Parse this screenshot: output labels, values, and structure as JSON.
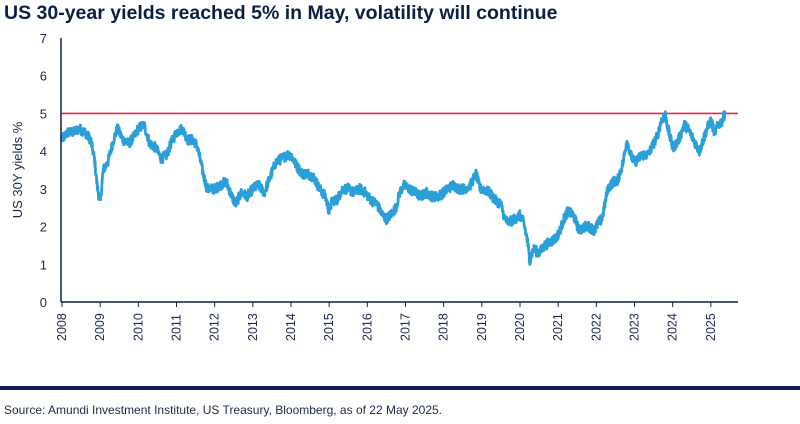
{
  "chart_data": {
    "type": "line",
    "title": "US 30-year yields reached 5% in May, volatility will continue",
    "ylabel": "US 30Y yields %",
    "xlabel": "",
    "ylim": [
      0,
      7
    ],
    "yticks": [
      "0",
      "1",
      "2",
      "3",
      "4",
      "5",
      "6",
      "7"
    ],
    "xlim": [
      2008.0,
      2025.45
    ],
    "xticks": [
      "2008",
      "2009",
      "2010",
      "2011",
      "2012",
      "2013",
      "2014",
      "2015",
      "2016",
      "2017",
      "2018",
      "2019",
      "2020",
      "2021",
      "2022",
      "2023",
      "2024",
      "2025"
    ],
    "reference_line": {
      "y": 5,
      "color": "#e0284b"
    },
    "series": [
      {
        "name": "US 30Y yield",
        "color": "#2a9fd8",
        "x": [
          2008.0,
          2008.15,
          2008.3,
          2008.45,
          2008.6,
          2008.75,
          2008.85,
          2008.92,
          2009.0,
          2009.08,
          2009.2,
          2009.35,
          2009.45,
          2009.6,
          2009.75,
          2009.9,
          2010.0,
          2010.15,
          2010.3,
          2010.45,
          2010.6,
          2010.75,
          2010.85,
          2011.0,
          2011.15,
          2011.3,
          2011.45,
          2011.55,
          2011.7,
          2011.8,
          2011.9,
          2012.0,
          2012.15,
          2012.3,
          2012.45,
          2012.55,
          2012.7,
          2012.85,
          2013.0,
          2013.15,
          2013.3,
          2013.45,
          2013.6,
          2013.75,
          2013.9,
          2014.0,
          2014.15,
          2014.3,
          2014.45,
          2014.6,
          2014.75,
          2014.9,
          2015.0,
          2015.08,
          2015.2,
          2015.35,
          2015.5,
          2015.65,
          2015.8,
          2015.95,
          2016.1,
          2016.25,
          2016.4,
          2016.5,
          2016.6,
          2016.75,
          2016.85,
          2016.95,
          2017.1,
          2017.25,
          2017.4,
          2017.55,
          2017.7,
          2017.85,
          2018.0,
          2018.1,
          2018.25,
          2018.4,
          2018.55,
          2018.7,
          2018.85,
          2018.95,
          2019.05,
          2019.2,
          2019.35,
          2019.5,
          2019.6,
          2019.7,
          2019.85,
          2020.0,
          2020.1,
          2020.2,
          2020.25,
          2020.35,
          2020.5,
          2020.65,
          2020.8,
          2020.95,
          2021.05,
          2021.15,
          2021.25,
          2021.4,
          2021.55,
          2021.7,
          2021.8,
          2021.95,
          2022.05,
          2022.15,
          2022.3,
          2022.45,
          2022.55,
          2022.7,
          2022.8,
          2022.9,
          2023.0,
          2023.1,
          2023.2,
          2023.35,
          2023.5,
          2023.6,
          2023.7,
          2023.8,
          2023.9,
          2024.0,
          2024.1,
          2024.2,
          2024.3,
          2024.4,
          2024.5,
          2024.6,
          2024.7,
          2024.8,
          2024.9,
          2025.0,
          2025.1,
          2025.2,
          2025.3,
          2025.38
        ],
        "values": [
          4.3,
          4.5,
          4.5,
          4.6,
          4.5,
          4.3,
          3.8,
          3.1,
          2.6,
          3.5,
          3.7,
          4.3,
          4.6,
          4.3,
          4.2,
          4.4,
          4.6,
          4.7,
          4.2,
          4.1,
          3.8,
          3.9,
          4.2,
          4.5,
          4.6,
          4.3,
          4.3,
          4.1,
          3.4,
          3.0,
          3.0,
          3.0,
          3.1,
          3.2,
          2.8,
          2.6,
          2.9,
          2.8,
          3.0,
          3.1,
          2.9,
          3.3,
          3.7,
          3.8,
          3.9,
          3.9,
          3.6,
          3.4,
          3.4,
          3.3,
          3.0,
          2.8,
          2.4,
          2.7,
          2.7,
          3.0,
          3.0,
          2.9,
          3.0,
          2.9,
          2.7,
          2.6,
          2.3,
          2.2,
          2.3,
          2.5,
          2.9,
          3.1,
          3.0,
          2.9,
          2.8,
          2.9,
          2.8,
          2.8,
          2.9,
          3.0,
          3.1,
          3.0,
          3.0,
          3.1,
          3.4,
          3.0,
          3.0,
          2.9,
          2.7,
          2.6,
          2.2,
          2.1,
          2.2,
          2.3,
          2.1,
          1.6,
          1.1,
          1.4,
          1.3,
          1.5,
          1.6,
          1.7,
          1.9,
          2.2,
          2.4,
          2.3,
          1.9,
          2.0,
          2.0,
          1.9,
          2.1,
          2.2,
          3.0,
          3.2,
          3.2,
          3.7,
          4.3,
          3.9,
          3.7,
          3.8,
          3.9,
          3.9,
          4.2,
          4.4,
          4.8,
          5.0,
          4.5,
          4.1,
          4.2,
          4.4,
          4.7,
          4.6,
          4.4,
          4.2,
          4.0,
          4.3,
          4.6,
          4.8,
          4.5,
          4.7,
          4.8,
          5.05
        ]
      }
    ]
  },
  "footer": {
    "source": "Source: Amundi Investment Institute, US Treasury, Bloomberg, as of 22 May 2025."
  },
  "colors": {
    "title": "#0b1f45",
    "line": "#2a9fd8",
    "reference": "#e0284b",
    "axis": "#0f1f4f",
    "rule": "#0f1f4f"
  }
}
